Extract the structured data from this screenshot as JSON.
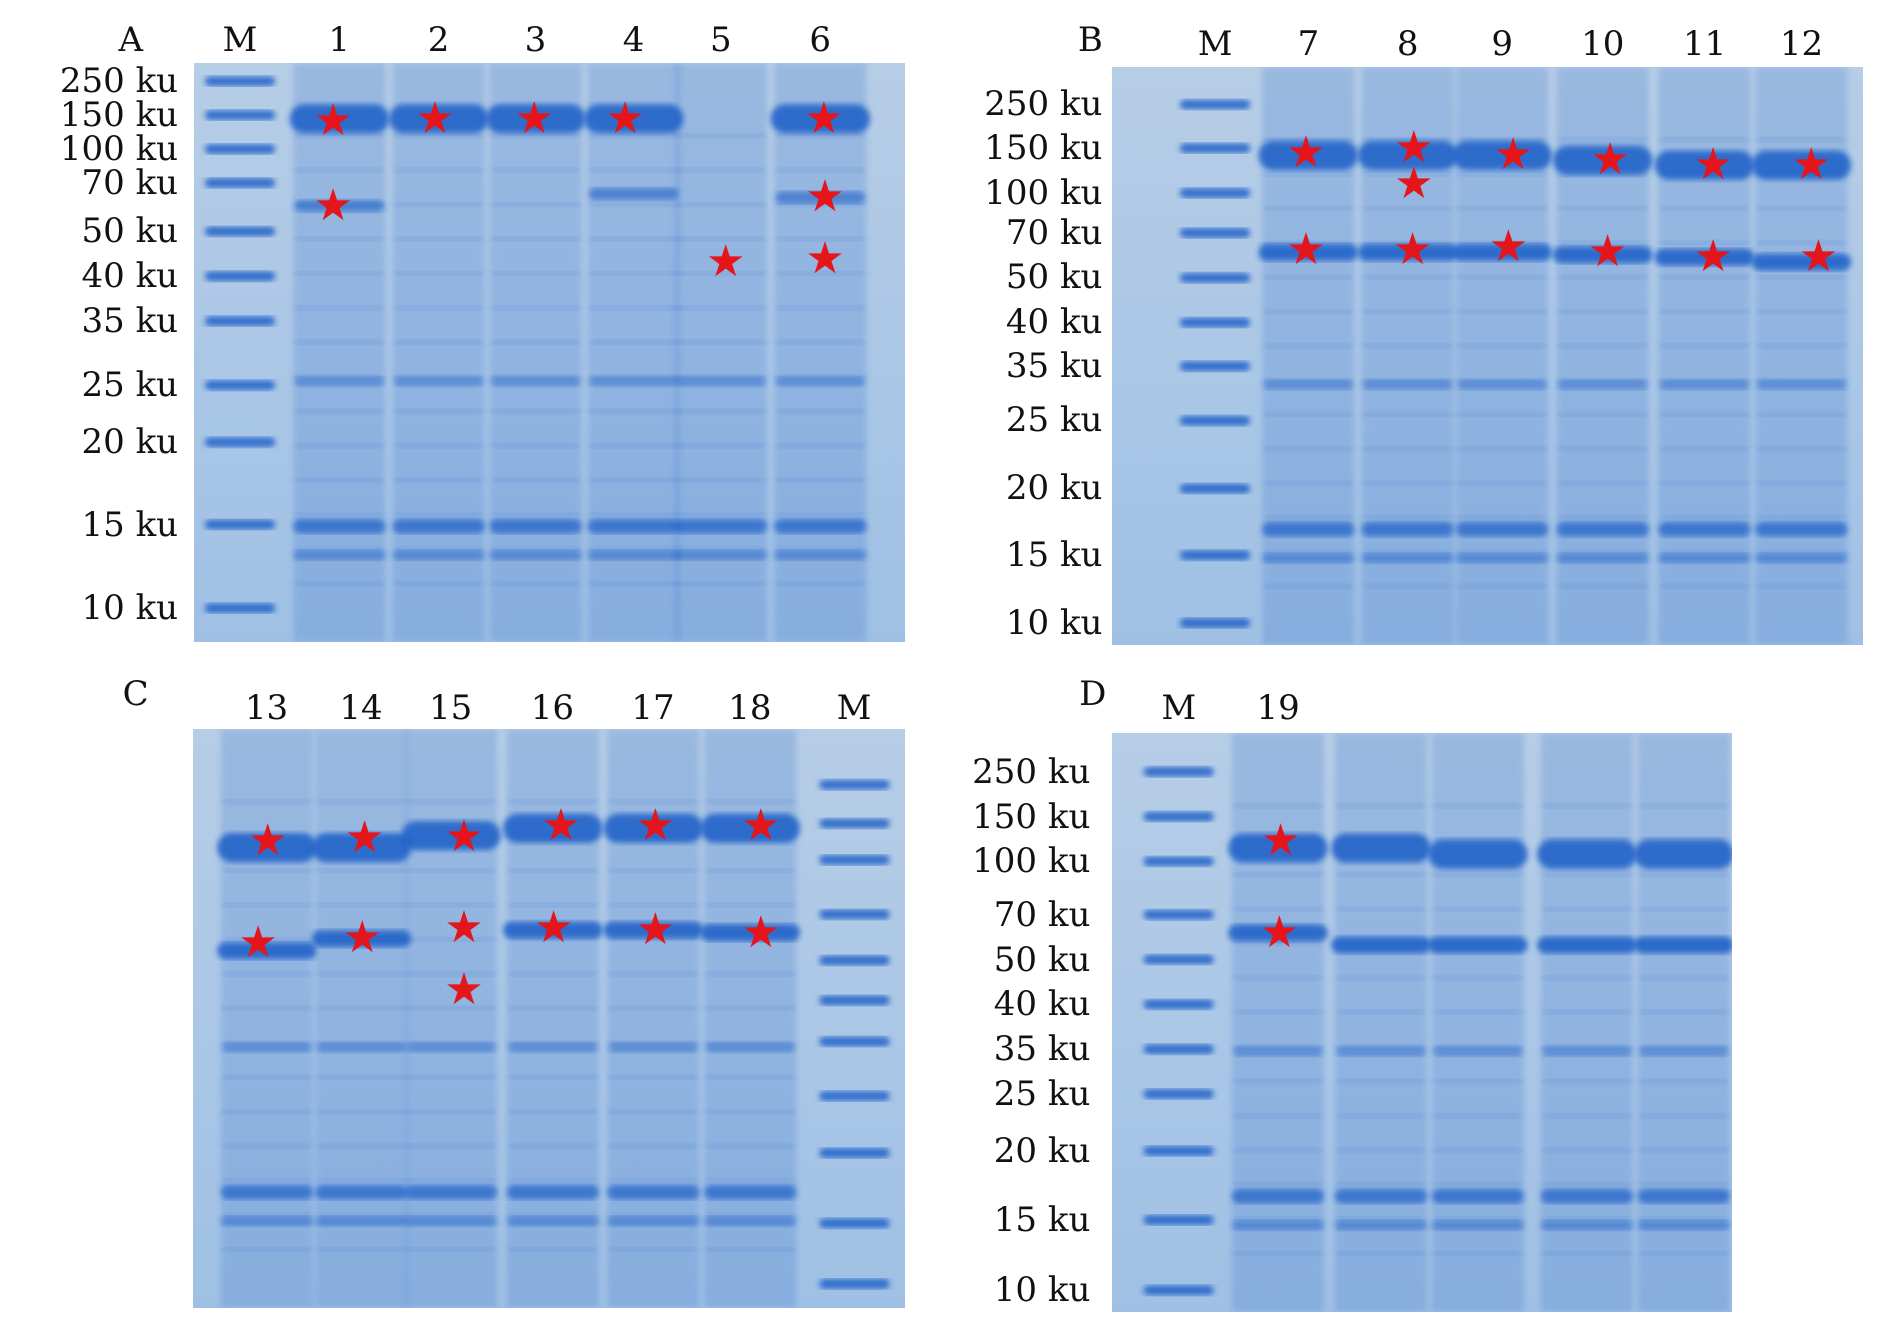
{
  "panels": [
    {
      "id": "A",
      "letter": "A",
      "lanes": [
        "M",
        "1",
        "2",
        "3",
        "4",
        "5",
        "6"
      ],
      "markers": [
        "250 ku",
        "150 ku",
        "100 ku",
        "70 ku",
        "50 ku",
        "40 ku",
        "35 ku",
        "25 ku",
        "20 ku",
        "15 ku",
        "10 ku"
      ]
    },
    {
      "id": "B",
      "letter": "B",
      "lanes": [
        "M",
        "7",
        "8",
        "9",
        "10",
        "11",
        "12"
      ],
      "markers": [
        "250 ku",
        "150 ku",
        "100 ku",
        "70 ku",
        "50 ku",
        "40 ku",
        "35 ku",
        "25 ku",
        "20 ku",
        "15 ku",
        "10 ku"
      ]
    },
    {
      "id": "C",
      "letter": "C",
      "lanes": [
        "13",
        "14",
        "15",
        "16",
        "17",
        "18",
        "M"
      ],
      "markers": []
    },
    {
      "id": "D",
      "letter": "D",
      "lanes": [
        "M",
        "19"
      ],
      "markers": [
        "250 ku",
        "150 ku",
        "100 ku",
        "70 ku",
        "50 ku",
        "40 ku",
        "35 ku",
        "25 ku",
        "20 ku",
        "15 ku",
        "10 ku"
      ]
    }
  ],
  "colors": {
    "star": "#e4161c",
    "band": "#1d5fc8",
    "gel": "#aac6e6"
  }
}
